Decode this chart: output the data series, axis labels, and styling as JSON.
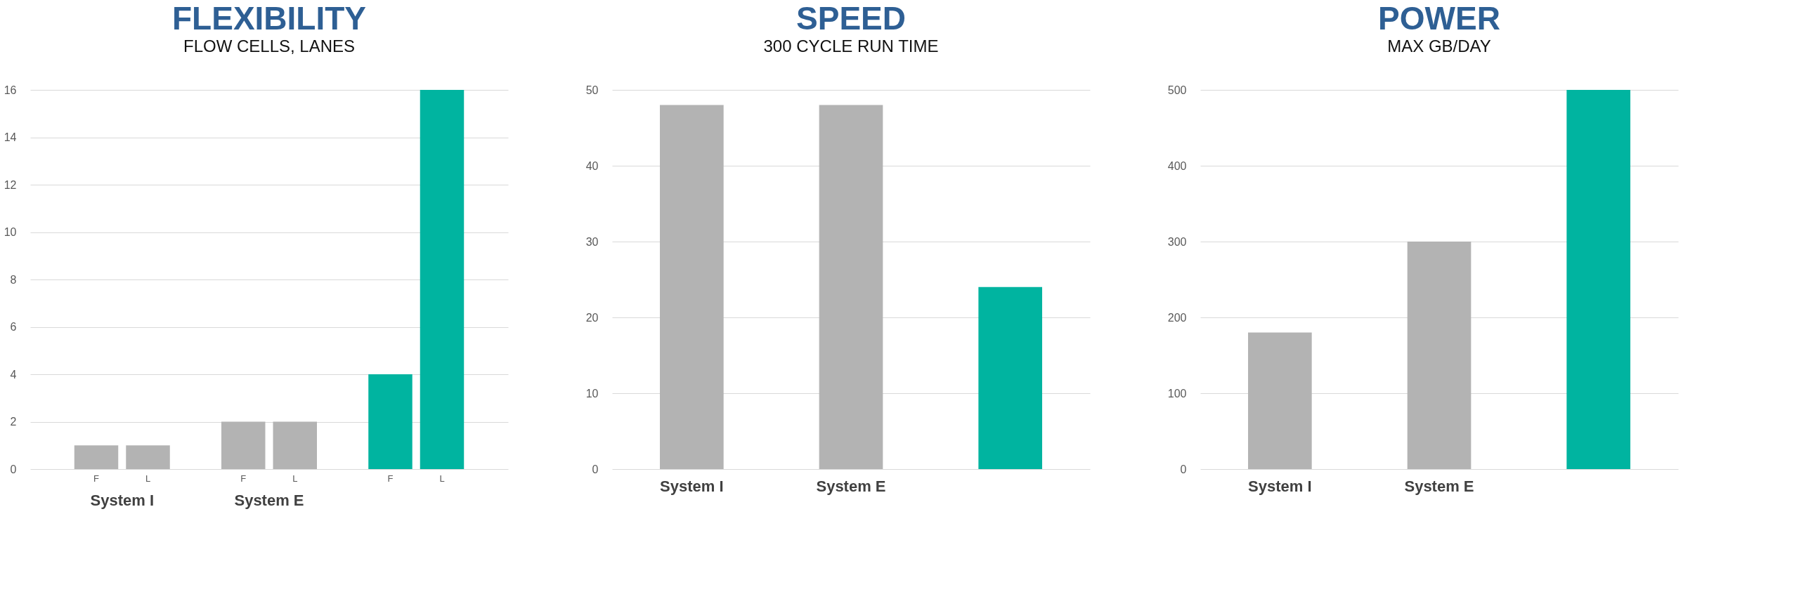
{
  "chart_data": [
    {
      "type": "bar",
      "title": "FLEXIBILITY",
      "subtitle": "FLOW CELLS, LANES",
      "categories": [
        "System I",
        "System E",
        null
      ],
      "series": [
        {
          "name": "F",
          "colors": [
            "#b3b3b3",
            "#b3b3b3",
            "#00b4a0"
          ],
          "values": [
            1,
            2,
            4
          ]
        },
        {
          "name": "L",
          "colors": [
            "#b3b3b3",
            "#b3b3b3",
            "#00b4a0"
          ],
          "values": [
            1,
            2,
            16
          ]
        }
      ],
      "ylim": [
        0,
        16
      ],
      "yticks": [
        0,
        2,
        4,
        6,
        8,
        10,
        12,
        14,
        16
      ],
      "grid": "y"
    },
    {
      "type": "bar",
      "title": "SPEED",
      "subtitle": "300 CYCLE RUN TIME",
      "categories": [
        "System I",
        "System E",
        null
      ],
      "values": [
        48,
        48,
        24
      ],
      "colors": [
        "#b3b3b3",
        "#b3b3b3",
        "#00b4a0"
      ],
      "ylim": [
        0,
        50
      ],
      "yticks": [
        0,
        10,
        20,
        30,
        40,
        50
      ],
      "grid": "y"
    },
    {
      "type": "bar",
      "title": "POWER",
      "subtitle": "MAX GB/DAY",
      "categories": [
        "System I",
        "System E",
        null
      ],
      "values": [
        180,
        300,
        500
      ],
      "colors": [
        "#b3b3b3",
        "#b3b3b3",
        "#00b4a0"
      ],
      "ylim": [
        0,
        500
      ],
      "yticks": [
        0,
        100,
        200,
        300,
        400,
        500
      ],
      "grid": "y"
    }
  ]
}
